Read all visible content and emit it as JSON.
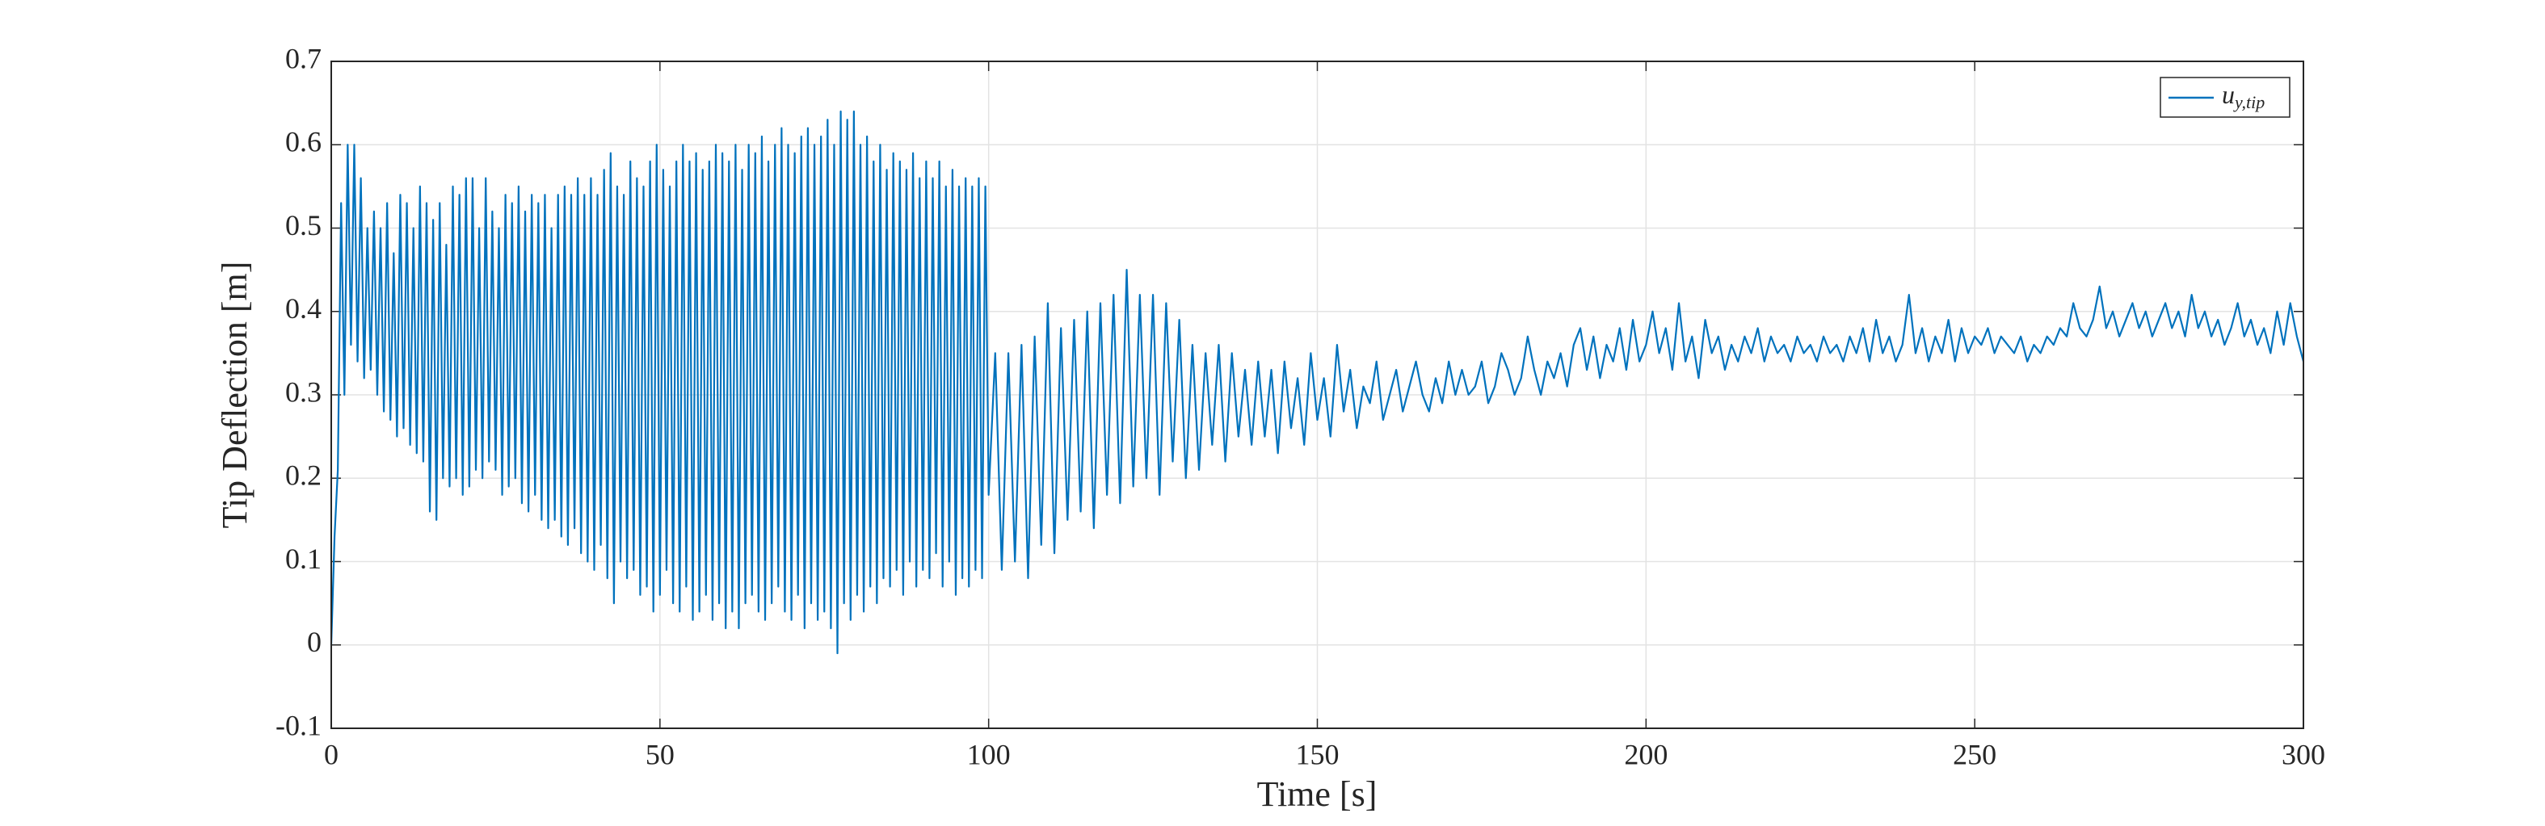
{
  "chart_data": {
    "type": "line",
    "xlabel": "Time [s]",
    "ylabel": "Tip Deflection [m]",
    "xlim": [
      0,
      300
    ],
    "ylim": [
      -0.1,
      0.7
    ],
    "xticks": [
      0,
      50,
      100,
      150,
      200,
      250,
      300
    ],
    "yticks": [
      -0.1,
      0,
      0.1,
      0.2,
      0.3,
      0.4,
      0.5,
      0.6,
      0.7
    ],
    "grid": true,
    "legend": "upper right",
    "x": [
      0,
      0.5,
      1,
      1.5,
      2,
      2.5,
      3,
      3.5,
      4,
      4.5,
      5,
      5.5,
      6,
      6.5,
      7,
      7.5,
      8,
      8.5,
      9,
      9.5,
      10,
      10.5,
      11,
      11.5,
      12,
      12.5,
      13,
      13.5,
      14,
      14.5,
      15,
      15.5,
      16,
      16.5,
      17,
      17.5,
      18,
      18.5,
      19,
      19.5,
      20,
      20.5,
      21,
      21.5,
      22,
      22.5,
      23,
      23.5,
      24,
      24.5,
      25,
      25.5,
      26,
      26.5,
      27,
      27.5,
      28,
      28.5,
      29,
      29.5,
      30,
      30.5,
      31,
      31.5,
      32,
      32.5,
      33,
      33.5,
      34,
      34.5,
      35,
      35.5,
      36,
      36.5,
      37,
      37.5,
      38,
      38.5,
      39,
      39.5,
      40,
      40.5,
      41,
      41.5,
      42,
      42.5,
      43,
      43.5,
      44,
      44.5,
      45,
      45.5,
      46,
      46.5,
      47,
      47.5,
      48,
      48.5,
      49,
      49.5,
      50,
      50.5,
      51,
      51.5,
      52,
      52.5,
      53,
      53.5,
      54,
      54.5,
      55,
      55.5,
      56,
      56.5,
      57,
      57.5,
      58,
      58.5,
      59,
      59.5,
      60,
      60.5,
      61,
      61.5,
      62,
      62.5,
      63,
      63.5,
      64,
      64.5,
      65,
      65.5,
      66,
      66.5,
      67,
      67.5,
      68,
      68.5,
      69,
      69.5,
      70,
      70.5,
      71,
      71.5,
      72,
      72.5,
      73,
      73.5,
      74,
      74.5,
      75,
      75.5,
      76,
      76.5,
      77,
      77.5,
      78,
      78.5,
      79,
      79.5,
      80,
      80.5,
      81,
      81.5,
      82,
      82.5,
      83,
      83.5,
      84,
      84.5,
      85,
      85.5,
      86,
      86.5,
      87,
      87.5,
      88,
      88.5,
      89,
      89.5,
      90,
      90.5,
      91,
      91.5,
      92,
      92.5,
      93,
      93.5,
      94,
      94.5,
      95,
      95.5,
      96,
      96.5,
      97,
      97.5,
      98,
      98.5,
      99,
      99.5,
      100,
      101,
      102,
      103,
      104,
      105,
      106,
      107,
      108,
      109,
      110,
      111,
      112,
      113,
      114,
      115,
      116,
      117,
      118,
      119,
      120,
      121,
      122,
      123,
      124,
      125,
      126,
      127,
      128,
      129,
      130,
      131,
      132,
      133,
      134,
      135,
      136,
      137,
      138,
      139,
      140,
      141,
      142,
      143,
      144,
      145,
      146,
      147,
      148,
      149,
      150,
      151,
      152,
      153,
      154,
      155,
      156,
      157,
      158,
      159,
      160,
      161,
      162,
      163,
      164,
      165,
      166,
      167,
      168,
      169,
      170,
      171,
      172,
      173,
      174,
      175,
      176,
      177,
      178,
      179,
      180,
      181,
      182,
      183,
      184,
      185,
      186,
      187,
      188,
      189,
      190,
      191,
      192,
      193,
      194,
      195,
      196,
      197,
      198,
      199,
      200,
      201,
      202,
      203,
      204,
      205,
      206,
      207,
      208,
      209,
      210,
      211,
      212,
      213,
      214,
      215,
      216,
      217,
      218,
      219,
      220,
      221,
      222,
      223,
      224,
      225,
      226,
      227,
      228,
      229,
      230,
      231,
      232,
      233,
      234,
      235,
      236,
      237,
      238,
      239,
      240,
      241,
      242,
      243,
      244,
      245,
      246,
      247,
      248,
      249,
      250,
      251,
      252,
      253,
      254,
      255,
      256,
      257,
      258,
      259,
      260,
      261,
      262,
      263,
      264,
      265,
      266,
      267,
      268,
      269,
      270,
      271,
      272,
      273,
      274,
      275,
      276,
      277,
      278,
      279,
      280,
      281,
      282,
      283,
      284,
      285,
      286,
      287,
      288,
      289,
      290,
      291,
      292,
      293,
      294,
      295,
      296,
      297,
      298,
      299,
      300
    ],
    "series": [
      {
        "name": "u",
        "name_subscript": "y,tip",
        "color": "#0072bd",
        "values": [
          0,
          0.13,
          0.21,
          0.53,
          0.3,
          0.6,
          0.36,
          0.6,
          0.34,
          0.56,
          0.32,
          0.5,
          0.33,
          0.52,
          0.3,
          0.5,
          0.28,
          0.53,
          0.27,
          0.47,
          0.25,
          0.54,
          0.26,
          0.53,
          0.24,
          0.5,
          0.23,
          0.55,
          0.22,
          0.53,
          0.16,
          0.51,
          0.15,
          0.53,
          0.2,
          0.48,
          0.19,
          0.55,
          0.2,
          0.54,
          0.18,
          0.56,
          0.19,
          0.56,
          0.21,
          0.5,
          0.2,
          0.56,
          0.22,
          0.52,
          0.21,
          0.5,
          0.18,
          0.54,
          0.19,
          0.53,
          0.2,
          0.55,
          0.17,
          0.52,
          0.16,
          0.54,
          0.18,
          0.53,
          0.15,
          0.54,
          0.14,
          0.5,
          0.15,
          0.54,
          0.13,
          0.55,
          0.12,
          0.54,
          0.14,
          0.56,
          0.11,
          0.54,
          0.1,
          0.56,
          0.09,
          0.54,
          0.12,
          0.57,
          0.08,
          0.59,
          0.05,
          0.55,
          0.1,
          0.54,
          0.08,
          0.58,
          0.09,
          0.56,
          0.06,
          0.55,
          0.07,
          0.58,
          0.04,
          0.6,
          0.06,
          0.57,
          0.09,
          0.55,
          0.05,
          0.58,
          0.04,
          0.6,
          0.07,
          0.58,
          0.03,
          0.59,
          0.04,
          0.57,
          0.06,
          0.58,
          0.03,
          0.6,
          0.05,
          0.59,
          0.02,
          0.58,
          0.04,
          0.6,
          0.02,
          0.57,
          0.05,
          0.6,
          0.06,
          0.59,
          0.04,
          0.61,
          0.03,
          0.58,
          0.05,
          0.6,
          0.07,
          0.62,
          0.04,
          0.6,
          0.03,
          0.59,
          0.06,
          0.61,
          0.02,
          0.62,
          0.05,
          0.6,
          0.03,
          0.61,
          0.04,
          0.63,
          0.02,
          0.6,
          -0.01,
          0.64,
          0.05,
          0.63,
          0.03,
          0.64,
          0.06,
          0.6,
          0.04,
          0.61,
          0.07,
          0.58,
          0.05,
          0.6,
          0.08,
          0.57,
          0.07,
          0.59,
          0.09,
          0.58,
          0.06,
          0.57,
          0.1,
          0.59,
          0.07,
          0.56,
          0.09,
          0.58,
          0.08,
          0.56,
          0.11,
          0.58,
          0.07,
          0.55,
          0.1,
          0.57,
          0.06,
          0.55,
          0.08,
          0.56,
          0.07,
          0.55,
          0.09,
          0.56,
          0.08,
          0.55,
          0.18,
          0.35,
          0.09,
          0.35,
          0.1,
          0.36,
          0.08,
          0.37,
          0.12,
          0.41,
          0.11,
          0.38,
          0.15,
          0.39,
          0.16,
          0.4,
          0.14,
          0.41,
          0.18,
          0.42,
          0.17,
          0.45,
          0.19,
          0.42,
          0.2,
          0.42,
          0.18,
          0.41,
          0.22,
          0.39,
          0.2,
          0.36,
          0.21,
          0.35,
          0.24,
          0.36,
          0.22,
          0.35,
          0.25,
          0.33,
          0.24,
          0.34,
          0.25,
          0.33,
          0.23,
          0.34,
          0.26,
          0.32,
          0.24,
          0.35,
          0.27,
          0.32,
          0.25,
          0.36,
          0.28,
          0.33,
          0.26,
          0.31,
          0.29,
          0.34,
          0.27,
          0.3,
          0.33,
          0.28,
          0.31,
          0.34,
          0.3,
          0.28,
          0.32,
          0.29,
          0.34,
          0.3,
          0.33,
          0.3,
          0.31,
          0.34,
          0.29,
          0.31,
          0.35,
          0.33,
          0.3,
          0.32,
          0.37,
          0.33,
          0.3,
          0.34,
          0.32,
          0.35,
          0.31,
          0.36,
          0.38,
          0.33,
          0.37,
          0.32,
          0.36,
          0.34,
          0.38,
          0.33,
          0.39,
          0.34,
          0.36,
          0.4,
          0.35,
          0.38,
          0.33,
          0.41,
          0.34,
          0.37,
          0.32,
          0.39,
          0.35,
          0.37,
          0.33,
          0.36,
          0.34,
          0.37,
          0.35,
          0.38,
          0.34,
          0.37,
          0.35,
          0.36,
          0.34,
          0.37,
          0.35,
          0.36,
          0.34,
          0.37,
          0.35,
          0.36,
          0.34,
          0.37,
          0.35,
          0.38,
          0.34,
          0.39,
          0.35,
          0.37,
          0.34,
          0.36,
          0.42,
          0.35,
          0.38,
          0.34,
          0.37,
          0.35,
          0.39,
          0.34,
          0.38,
          0.35,
          0.37,
          0.36,
          0.38,
          0.35,
          0.37,
          0.36,
          0.35,
          0.37,
          0.34,
          0.36,
          0.35,
          0.37,
          0.36,
          0.38,
          0.37,
          0.41,
          0.38,
          0.37,
          0.39,
          0.43,
          0.38,
          0.4,
          0.37,
          0.39,
          0.41,
          0.38,
          0.4,
          0.37,
          0.39,
          0.41,
          0.38,
          0.4,
          0.37,
          0.42,
          0.38,
          0.4,
          0.37,
          0.39,
          0.36,
          0.38,
          0.41,
          0.37,
          0.39,
          0.36,
          0.38,
          0.35,
          0.4,
          0.36,
          0.41,
          0.37,
          0.34
        ]
      }
    ]
  }
}
